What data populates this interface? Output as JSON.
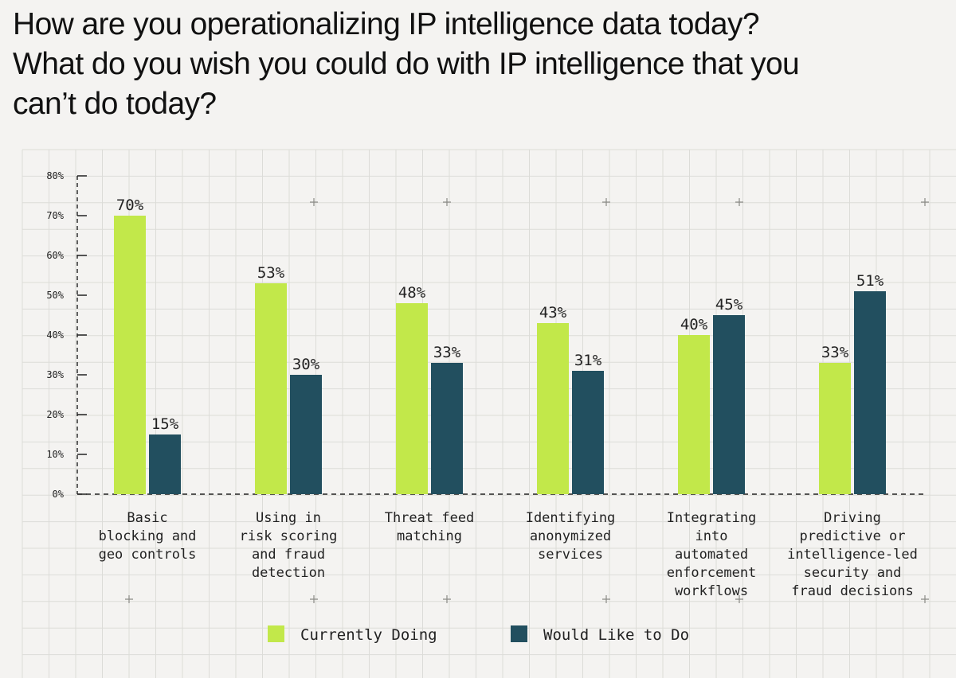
{
  "title_lines": [
    "How are you operationalizing IP intelligence data today?",
    "What do you wish you could do with IP intelligence that you",
    "can’t do today?"
  ],
  "chart_data": {
    "type": "bar",
    "categories": [
      [
        "Basic",
        "blocking and",
        "geo controls"
      ],
      [
        "Using in",
        "risk scoring",
        "and fraud",
        "detection"
      ],
      [
        "Threat feed",
        "matching"
      ],
      [
        "Identifying",
        "anonymized",
        "services"
      ],
      [
        "Integrating",
        "into",
        "automated",
        "enforcement",
        "workflows"
      ],
      [
        "Driving",
        "predictive or",
        "intelligence-led",
        "security and",
        "fraud decisions"
      ]
    ],
    "series": [
      {
        "name": "Currently Doing",
        "color": "#c2e84a",
        "values": [
          70,
          53,
          48,
          43,
          40,
          33
        ]
      },
      {
        "name": "Would Like to Do",
        "color": "#224f5f",
        "values": [
          15,
          30,
          33,
          31,
          45,
          51
        ]
      }
    ],
    "value_suffix": "%",
    "yticks": [
      "0%",
      "10%",
      "20%",
      "30%",
      "40%",
      "50%",
      "60%",
      "70%",
      "80%"
    ],
    "ylim": [
      0,
      80
    ],
    "grid": true,
    "legend_position": "bottom"
  }
}
